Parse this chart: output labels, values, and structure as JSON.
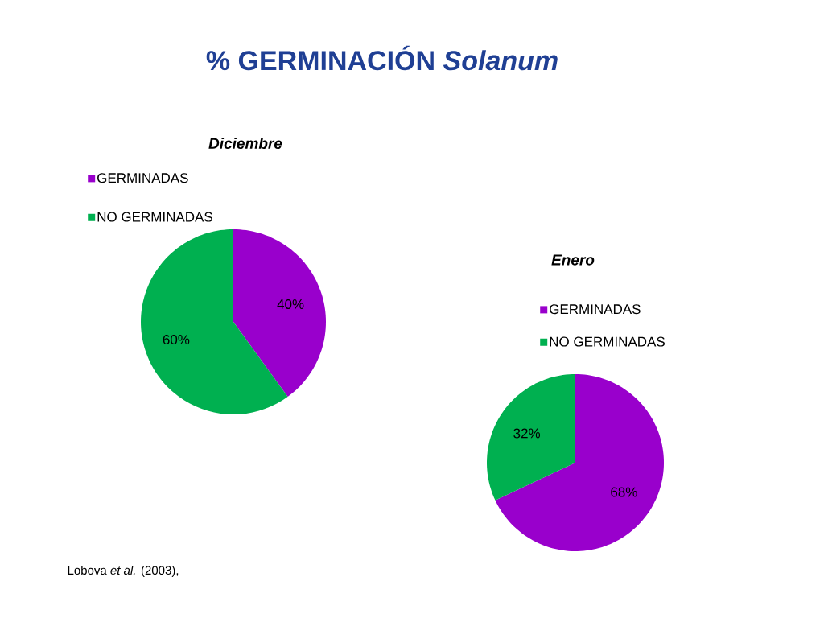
{
  "chart_data": [
    {
      "type": "pie",
      "title": "Diciembre",
      "categories": [
        "GERMINADAS",
        "NO GERMINADAS"
      ],
      "values": [
        40,
        60
      ],
      "value_labels": [
        "40%",
        "60%"
      ],
      "colors": [
        "#9900cc",
        "#00b050"
      ],
      "legend": "top",
      "annotations": [
        "% GERMINACIÓN *Solanum*"
      ]
    },
    {
      "type": "pie",
      "title": "Enero",
      "categories": [
        "GERMINADAS",
        "NO GERMINADAS"
      ],
      "values": [
        68,
        32
      ],
      "value_labels": [
        "68%",
        "32%"
      ],
      "colors": [
        "#9900cc",
        "#00b050"
      ],
      "legend": "top",
      "annotations": [
        "Lobova *et al.* (2003),"
      ]
    }
  ]
}
